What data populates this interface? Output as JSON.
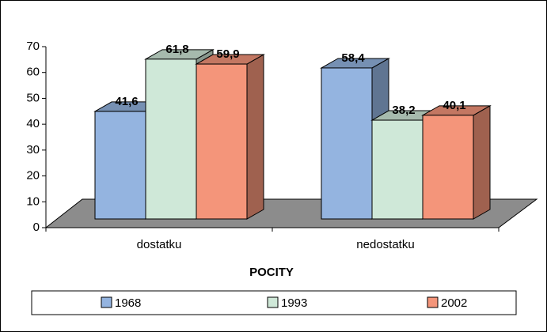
{
  "chart_data": {
    "type": "bar3d",
    "x_label": "POCITY",
    "categories": [
      "dostatku",
      "nedostatku"
    ],
    "series": [
      {
        "name": "1968",
        "color": "#94b4e0",
        "values": [
          41.6,
          58.4
        ],
        "value_labels": [
          "41,6",
          "58,4"
        ]
      },
      {
        "name": "1993",
        "color": "#cfe8d8",
        "values": [
          61.8,
          38.2
        ],
        "value_labels": [
          "61,8",
          "38,2"
        ]
      },
      {
        "name": "2002",
        "color": "#f4957a",
        "values": [
          59.9,
          40.1
        ],
        "value_labels": [
          "59,9",
          "40,1"
        ]
      }
    ],
    "ylim": [
      0,
      70
    ],
    "yticks": [
      0,
      10,
      20,
      30,
      40,
      50,
      60,
      70
    ],
    "legend": "bottom"
  }
}
